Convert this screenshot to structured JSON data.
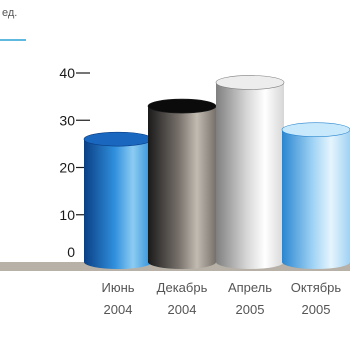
{
  "chart_data": {
    "type": "bar",
    "unit_label": "ед.",
    "categories": [
      {
        "line1": "Июнь",
        "line2": "2004"
      },
      {
        "line1": "Декабрь",
        "line2": "2004"
      },
      {
        "line1": "Апрель",
        "line2": "2005"
      },
      {
        "line1": "Октябрь",
        "line2": "2005"
      }
    ],
    "values": [
      26,
      33,
      38,
      28
    ],
    "yticks": [
      0,
      10,
      20,
      30,
      40
    ],
    "ylim": [
      0,
      40
    ],
    "grid": false,
    "legend": "none"
  },
  "colors": {
    "accent_line": "#2aa0d6",
    "floor": "#b7b1a7",
    "bars": [
      {
        "dark": "#0a3f86",
        "mid": "#2f8fdc",
        "light": "#8cccf2",
        "top": "#1967bf"
      },
      {
        "dark": "#1a1a1a",
        "mid": "#77706a",
        "light": "#c2bbb2",
        "top": "#0b0b0b"
      },
      {
        "dark": "#7f7f7f",
        "mid": "#d6d6d6",
        "light": "#ffffff",
        "top": "#ededed"
      },
      {
        "dark": "#2a86cf",
        "mid": "#9fd2f4",
        "light": "#e6f5fd",
        "top": "#c8e8fb"
      }
    ]
  }
}
